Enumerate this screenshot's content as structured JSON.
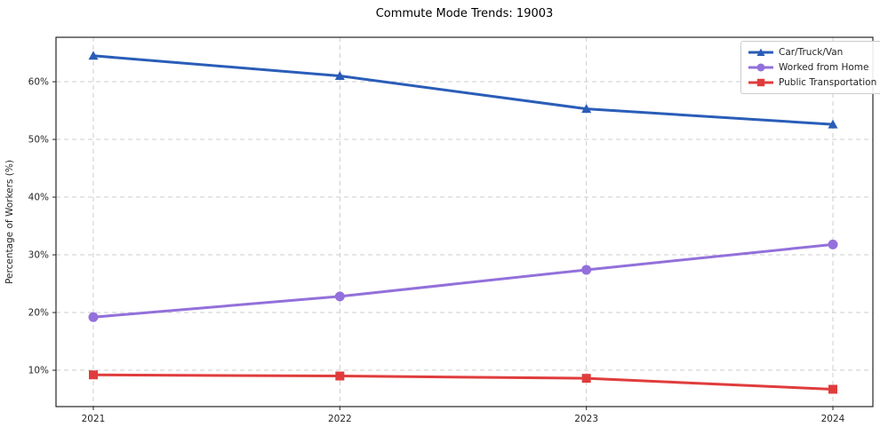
{
  "title": "Commute Mode Trends: 19003",
  "chart_data": {
    "type": "line",
    "title": "Commute Mode Trends: 19003",
    "x": [
      2021,
      2022,
      2023,
      2024
    ],
    "x_tick_labels": [
      "2021",
      "2022",
      "2023",
      "2024"
    ],
    "xlabel": "",
    "ylabel": "Percentage of Workers (%)",
    "y_ticks": [
      10,
      20,
      30,
      40,
      50,
      60
    ],
    "y_tick_labels": [
      "10%",
      "20%",
      "30%",
      "40%",
      "50%",
      "60%"
    ],
    "ylim": [
      3.7,
      67.7
    ],
    "grid": true,
    "grid_style": "dashed",
    "legend_position": "upper right",
    "series": [
      {
        "name": "Car/Truck/Van",
        "marker": "triangle",
        "color": "#2a5db8",
        "values": [
          64.5,
          61.0,
          55.3,
          52.6
        ]
      },
      {
        "name": "Worked from Home",
        "marker": "circle",
        "color": "#9370db",
        "values": [
          19.2,
          22.8,
          27.4,
          31.8
        ]
      },
      {
        "name": "Public Transportation",
        "marker": "square",
        "color": "#e03c3c",
        "values": [
          9.2,
          9.0,
          8.6,
          6.7
        ]
      }
    ],
    "colors": {
      "grid": "#cccccc",
      "spine": "#262626",
      "tick_label": "#262626",
      "title": "#000000"
    }
  }
}
